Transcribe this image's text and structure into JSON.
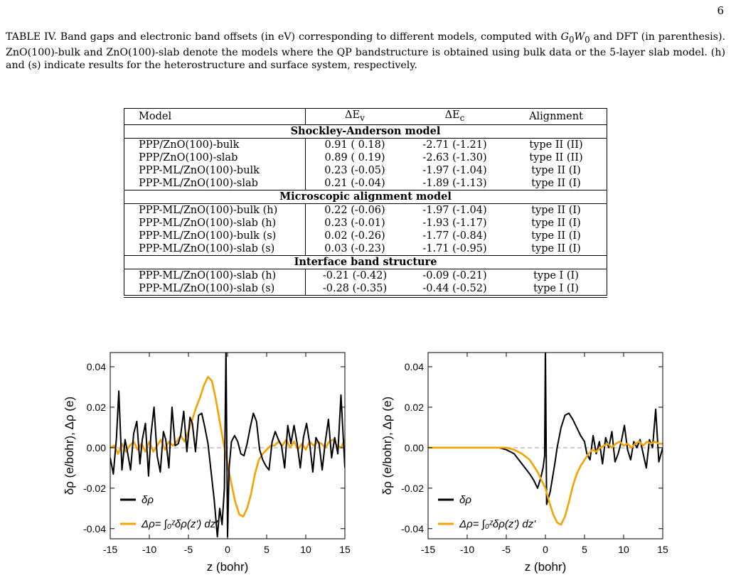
{
  "page_number": "6",
  "caption": {
    "lead": "TABLE IV.  Band gaps and electronic band offsets (in eV) corresponding to different models, computed with ",
    "gw": "G",
    "gw_sub1": "0",
    "gw_w": "W",
    "gw_sub2": "0",
    "rest": " and DFT (in parenthesis).  ZnO(100)-bulk and ZnO(100)-slab denote the models where the QP bandstructure is obtained using bulk data or the 5-layer slab model. (h) and (s) indicate results for the heterostructure and surface system, respectively."
  },
  "table": {
    "headers": [
      "Model",
      "ΔE",
      "v",
      "ΔE",
      "c",
      "Alignment"
    ],
    "sections": [
      {
        "title": "Shockley-Anderson model",
        "rows": [
          [
            "PPP/ZnO(100)-bulk",
            "0.91 ( 0.18)",
            "-2.71 (-1.21)",
            "type II (II)"
          ],
          [
            "PPP/ZnO(100)-slab",
            "0.89 ( 0.19)",
            "-2.63 (-1.30)",
            "type II (II)"
          ],
          [
            "PPP-ML/ZnO(100)-bulk",
            "0.23 (-0.05)",
            "-1.97 (-1.04)",
            "type II (I)"
          ],
          [
            "PPP-ML/ZnO(100)-slab",
            "0.21 (-0.04)",
            "-1.89 (-1.13)",
            "type II (I)"
          ]
        ]
      },
      {
        "title": "Microscopic alignment model",
        "rows": [
          [
            "PPP-ML/ZnO(100)-bulk (h)",
            "0.22 (-0.06)",
            "-1.97 (-1.04)",
            "type II (I)"
          ],
          [
            "PPP-ML/ZnO(100)-slab (h)",
            "0.23 (-0.01)",
            "-1.93 (-1.17)",
            "type II (I)"
          ],
          [
            "PPP-ML/ZnO(100)-bulk (s)",
            "0.02 (-0.26)",
            "-1.77 (-0.84)",
            "type II (I)"
          ],
          [
            "PPP-ML/ZnO(100)-slab (s)",
            "0.03 (-0.23)",
            "-1.71 (-0.95)",
            "type II (I)"
          ]
        ]
      },
      {
        "title": "Interface band structure",
        "rows": [
          [
            "PPP-ML/ZnO(100)-slab (h)",
            "-0.21 (-0.42)",
            "-0.09 (-0.21)",
            "type I (I)"
          ],
          [
            "PPP-ML/ZnO(100)-slab (s)",
            "-0.28 (-0.35)",
            "-0.44 (-0.52)",
            "type I (I)"
          ]
        ]
      }
    ]
  },
  "chart_data": [
    {
      "type": "line",
      "xlabel": "z (bohr)",
      "ylabel": "δρ (e/bohr), Δρ (e)",
      "xlim": [
        -15,
        15
      ],
      "ylim": [
        -0.045,
        0.047
      ],
      "xticks": [
        "-15",
        "-10",
        "-5",
        "0",
        "5",
        "10",
        "15"
      ],
      "yticks": [
        "0.04",
        "0.02",
        "0.00",
        "-0.02",
        "-0.04"
      ],
      "ytick_values": [
        0.04,
        0.02,
        0.0,
        -0.02,
        -0.04
      ],
      "xtick_values": [
        -15,
        -10,
        -5,
        0,
        5,
        10,
        15
      ],
      "legend_location": "lower-left",
      "colors": {
        "delta_rho": "#000000",
        "Delta_rho": "#f5a300",
        "zero": "#cccccc"
      },
      "series": [
        {
          "name": "δρ",
          "x": [
            -15,
            -14.6,
            -14.2,
            -13.9,
            -13.5,
            -13.1,
            -12.8,
            -12.4,
            -12,
            -11.6,
            -11.2,
            -10.9,
            -10.5,
            -10.1,
            -9.8,
            -9.4,
            -9,
            -8.6,
            -8.2,
            -7.9,
            -7.5,
            -7.1,
            -6.7,
            -6.3,
            -6,
            -5.6,
            -5.2,
            -4.8,
            -4.5,
            -4.1,
            -3.7,
            -3.3,
            -2.9,
            -2.5,
            -2.1,
            -1.7,
            -1.3,
            -1,
            -0.7,
            -0.4,
            -0.2,
            0,
            0.2,
            0.5,
            0.9,
            1.3,
            1.7,
            2.1,
            2.5,
            2.9,
            3.3,
            3.7,
            4.1,
            4.5,
            4.9,
            5.3,
            5.7,
            6.1,
            6.5,
            6.9,
            7.3,
            7.7,
            8.1,
            8.5,
            8.9,
            9.3,
            9.7,
            10.1,
            10.5,
            10.9,
            11.3,
            11.7,
            12.1,
            12.5,
            12.9,
            13.3,
            13.7,
            14.1,
            14.5,
            15
          ],
          "y": [
            -0.005,
            -0.013,
            0.005,
            0.028,
            -0.011,
            0.004,
            -0.002,
            -0.011,
            0.007,
            0.013,
            -0.008,
            0.004,
            0.012,
            -0.014,
            0.006,
            0.02,
            -0.004,
            -0.012,
            0.008,
            0.004,
            -0.01,
            0.02,
            0.001,
            0.002,
            0.006,
            0.018,
            -0.002,
            0.015,
            0.012,
            -0.002,
            0.016,
            0.017,
            0.01,
            0.002,
            -0.012,
            -0.026,
            -0.044,
            -0.03,
            -0.038,
            -0.02,
            0.05,
            -0.044,
            -0.01,
            0.003,
            0.006,
            0.003,
            -0.003,
            -0.004,
            0.002,
            0.01,
            0.017,
            0.013,
            -0.001,
            -0.006,
            -0.009,
            -0.011,
            0.003,
            0.008,
            0.004,
            0.001,
            -0.01,
            0.011,
            0.002,
            0.011,
            0.002,
            -0.01,
            0.005,
            0.012,
            0.002,
            -0.012,
            0.005,
            0.002,
            -0.011,
            0.003,
            0.014,
            -0.005,
            0.005,
            -0.003,
            0.026,
            -0.01
          ]
        },
        {
          "name": "Δρ= ∫₀ᶻδρ(z') dz'",
          "x": [
            -15,
            -14.5,
            -14,
            -13.5,
            -13,
            -12.5,
            -12,
            -11.5,
            -11,
            -10.5,
            -10,
            -9.5,
            -9,
            -8.5,
            -8,
            -7.5,
            -7,
            -6.5,
            -6,
            -5.5,
            -5,
            -4.5,
            -4,
            -3.5,
            -3,
            -2.5,
            -2,
            -1.5,
            -1,
            -0.5,
            0,
            0.5,
            1,
            1.5,
            2,
            2.5,
            3,
            3.5,
            4,
            4.5,
            5,
            5.5,
            6,
            6.5,
            7,
            7.5,
            8,
            8.5,
            9,
            9.5,
            10,
            10.5,
            11,
            11.5,
            12,
            12.5,
            13,
            13.5,
            14,
            14.5,
            15
          ],
          "y": [
            0.0,
            0.001,
            -0.003,
            0.002,
            -0.002,
            0.001,
            0.003,
            -0.001,
            0.002,
            -0.002,
            0.003,
            -0.002,
            0.001,
            0.004,
            -0.001,
            0.003,
            0.001,
            0.003,
            0.006,
            0.003,
            0.008,
            0.014,
            0.02,
            0.025,
            0.031,
            0.035,
            0.033,
            0.024,
            0.013,
            0.002,
            -0.008,
            -0.018,
            -0.027,
            -0.033,
            -0.034,
            -0.03,
            -0.023,
            -0.013,
            -0.006,
            -0.003,
            -0.001,
            0.001,
            0.001,
            0.003,
            0.001,
            0.004,
            0.0,
            0.003,
            -0.001,
            0.002,
            -0.001,
            0.003,
            0.001,
            0.003,
            0.002,
            0.0,
            0.003,
            0.004,
            0.001,
            0.0,
            0.004
          ]
        }
      ]
    },
    {
      "type": "line",
      "xlabel": "z (bohr)",
      "ylabel": "δρ (e/bohr), Δρ (e)",
      "xlim": [
        -15,
        15
      ],
      "ylim": [
        -0.045,
        0.047
      ],
      "xticks": [
        "-15",
        "-10",
        "-5",
        "0",
        "5",
        "10",
        "15"
      ],
      "yticks": [
        "0.04",
        "0.02",
        "0.00",
        "-0.02",
        "-0.04"
      ],
      "ytick_values": [
        0.04,
        0.02,
        0.0,
        -0.02,
        -0.04
      ],
      "xtick_values": [
        -15,
        -10,
        -5,
        0,
        5,
        10,
        15
      ],
      "legend_location": "lower-left",
      "colors": {
        "delta_rho": "#000000",
        "Delta_rho": "#f5a300",
        "zero": "#cccccc"
      },
      "series": [
        {
          "name": "δρ",
          "x": [
            -15,
            -10,
            -6,
            -5,
            -4,
            -3,
            -2,
            -1.5,
            -1,
            -0.6,
            -0.3,
            -0.1,
            0,
            0.15,
            0.3,
            0.6,
            0.9,
            1.2,
            1.5,
            2,
            2.5,
            3,
            3.5,
            4,
            4.5,
            5,
            5.3,
            5.7,
            6.1,
            6.5,
            6.9,
            7.3,
            7.7,
            8.1,
            8.5,
            8.9,
            9.3,
            9.7,
            10.1,
            10.5,
            10.9,
            11.3,
            11.7,
            12.1,
            12.5,
            12.9,
            13.3,
            13.7,
            14.1,
            14.5,
            15
          ],
          "y": [
            0,
            0,
            0,
            -0.001,
            -0.003,
            -0.008,
            -0.013,
            -0.016,
            -0.02,
            -0.015,
            -0.01,
            -0.004,
            0.05,
            -0.028,
            -0.026,
            -0.022,
            -0.015,
            -0.008,
            0.0,
            0.01,
            0.016,
            0.017,
            0.014,
            0.01,
            0.006,
            0.003,
            -0.003,
            -0.006,
            0.006,
            -0.003,
            0.003,
            -0.008,
            0.005,
            0.0,
            0.008,
            -0.007,
            -0.003,
            0.003,
            0.011,
            -0.001,
            -0.006,
            0.003,
            0.0,
            0.004,
            -0.003,
            -0.01,
            0.004,
            0.0,
            0.019,
            -0.007,
            0.0
          ]
        },
        {
          "name": "Δρ= ∫₀ᶻδρ(z') dz'",
          "x": [
            -15,
            -10,
            -6,
            -5,
            -4,
            -3,
            -2,
            -1.5,
            -1,
            -0.5,
            0,
            0.5,
            1,
            1.5,
            2,
            2.5,
            3,
            3.5,
            4,
            4.5,
            5,
            5.5,
            6,
            6.5,
            7,
            7.5,
            8,
            8.5,
            9,
            9.5,
            10,
            10.5,
            11,
            11.5,
            12,
            12.5,
            13,
            13.5,
            14,
            14.5,
            15
          ],
          "y": [
            0,
            0,
            0,
            0.0,
            -0.001,
            -0.003,
            -0.006,
            -0.009,
            -0.012,
            -0.016,
            -0.02,
            -0.027,
            -0.033,
            -0.037,
            -0.038,
            -0.034,
            -0.027,
            -0.019,
            -0.013,
            -0.009,
            -0.006,
            -0.003,
            -0.001,
            -0.002,
            0.0,
            0.001,
            0.002,
            0.0,
            0.002,
            0.003,
            0.001,
            0.002,
            0.0,
            0.002,
            0.003,
            0.001,
            0.003,
            0.002,
            0.003,
            0.002,
            0.002
          ]
        }
      ]
    }
  ]
}
